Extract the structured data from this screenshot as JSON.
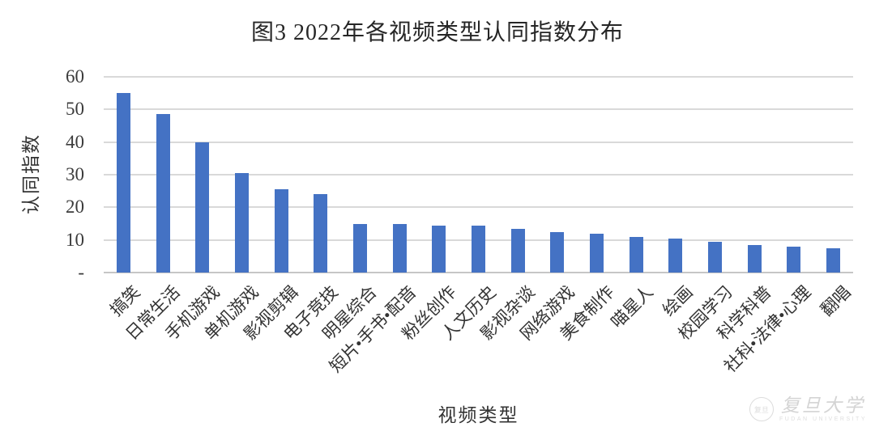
{
  "figure_title": "图3 2022年各视频类型认同指数分布",
  "chart_data": {
    "type": "bar",
    "title": "图3 2022年各视频类型认同指数分布",
    "xlabel": "视频类型",
    "ylabel": "认同指数",
    "categories": [
      "搞笑",
      "日常生活",
      "手机游戏",
      "单机游戏",
      "影视剪辑",
      "电子竞技",
      "明星综合",
      "短片•手书•配音",
      "粉丝创作",
      "人文历史",
      "影视杂谈",
      "网络游戏",
      "美食制作",
      "喵星人",
      "绘画",
      "校园学习",
      "科学科普",
      "社科•法律•心理",
      "翻唱"
    ],
    "values": [
      55,
      48.5,
      40,
      30.5,
      25.5,
      24,
      15,
      15,
      14.5,
      14.5,
      13.5,
      12.5,
      12,
      11,
      10.5,
      9.5,
      8.5,
      8,
      7.5
    ],
    "ylim": [
      0,
      60
    ],
    "ytick_values": [
      0,
      10,
      20,
      30,
      40,
      50,
      60
    ],
    "ytick_labels": [
      "-",
      "10",
      "20",
      "30",
      "40",
      "50",
      "60"
    ],
    "grid": true,
    "legend_position": "none",
    "bar_color": "#4472C4",
    "gridline_color": "#D9D9D9"
  },
  "watermark": {
    "seal_icon": "fudan-university-seal-icon",
    "seal_text": "复旦",
    "name_cn": "复旦大学",
    "name_en": "FUDAN UNIVERSITY"
  }
}
